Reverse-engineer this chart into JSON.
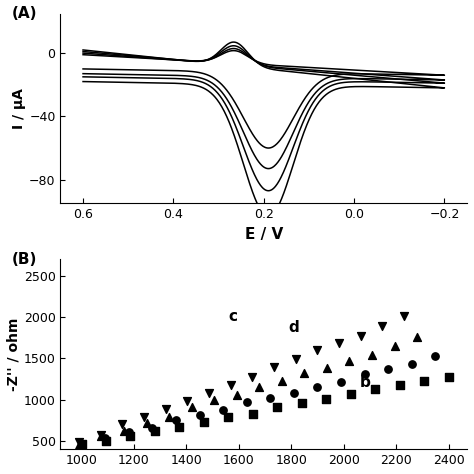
{
  "panel_A_label": "(A)",
  "panel_B_label": "(B)",
  "cv_xlabel": "E / V",
  "cv_ylabel": "I / μA",
  "nyquist_ylabel": "-Z'' / ohm",
  "cv_xlim": [
    0.65,
    -0.25
  ],
  "cv_ylim": [
    -95,
    25
  ],
  "cv_xticks": [
    0.6,
    0.4,
    0.2,
    0.0,
    -0.2
  ],
  "cv_yticks": [
    0,
    -40,
    -80
  ],
  "nyquist_ylim": [
    400,
    2700
  ],
  "nyquist_yticks": [
    500,
    1000,
    1500,
    2000,
    2500
  ],
  "background_color": "#ffffff",
  "line_color": "#000000"
}
